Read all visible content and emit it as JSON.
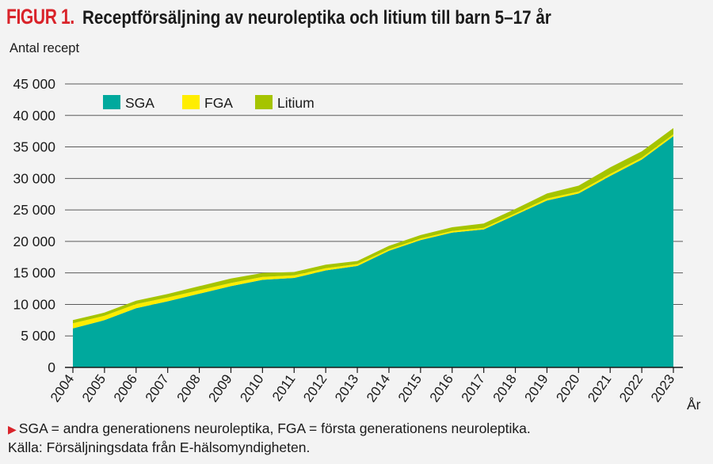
{
  "figure": {
    "label": "FIGUR 1.",
    "title": "Receptförsäljning av neuroleptika och litium till barn 5–17 år",
    "footnote": "SGA = andra generationens neuroleptika, FGA = första generationens neuroleptika.",
    "source": "Källa: Försäljningsdata från E-hälsomyndigheten."
  },
  "chart_data": {
    "type": "area",
    "stacked": true,
    "ylabel": "Antal recept",
    "xlabel": "År",
    "ylim": [
      0,
      45000
    ],
    "yticks": [
      0,
      5000,
      10000,
      15000,
      20000,
      25000,
      30000,
      35000,
      40000,
      45000
    ],
    "ytick_labels": [
      "0",
      "5 000",
      "10 000",
      "15 000",
      "20 000",
      "25 000",
      "30 000",
      "35 000",
      "40 000",
      "45 000"
    ],
    "grid": true,
    "legend_position": "top-left",
    "x": [
      "2004",
      "2005",
      "2006",
      "2007",
      "2008",
      "2009",
      "2010",
      "2011",
      "2012",
      "2013",
      "2014",
      "2015",
      "2016",
      "2017",
      "2018",
      "2019",
      "2020",
      "2021",
      "2022",
      "2023"
    ],
    "series": [
      {
        "name": "SGA",
        "color": "#00a99d",
        "values": [
          6200,
          7500,
          9400,
          10500,
          11700,
          12900,
          13900,
          14200,
          15400,
          16100,
          18500,
          20200,
          21400,
          21900,
          24200,
          26500,
          27600,
          30400,
          33000,
          36700
        ]
      },
      {
        "name": "FGA",
        "color": "#ffed00",
        "values": [
          800,
          700,
          650,
          600,
          550,
          500,
          450,
          400,
          350,
          300,
          250,
          250,
          250,
          250,
          250,
          300,
          300,
          300,
          300,
          300
        ]
      },
      {
        "name": "Litium",
        "color": "#a5c400",
        "values": [
          500,
          500,
          550,
          550,
          650,
          700,
          650,
          550,
          550,
          500,
          550,
          550,
          600,
          700,
          700,
          800,
          950,
          1050,
          1000,
          1000
        ]
      }
    ]
  }
}
